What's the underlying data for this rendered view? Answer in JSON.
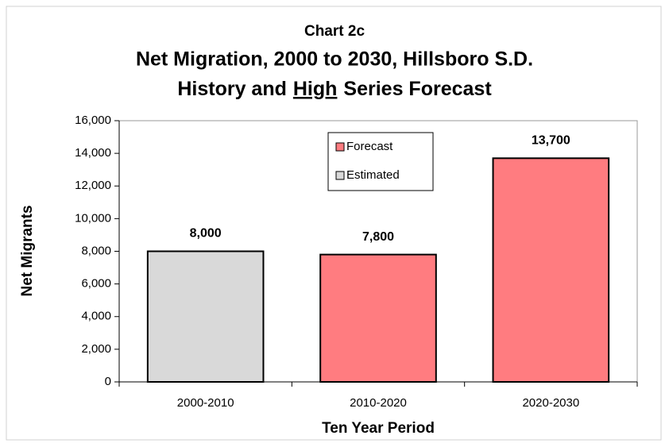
{
  "chart_data": {
    "type": "bar",
    "subtitle": "Chart 2c",
    "title": "Net Migration, 2000 to 2030, Hillsboro S.D.",
    "title_line2": [
      "History and",
      "High",
      "Series Forecast"
    ],
    "title_line2_underlined": [
      false,
      true,
      false
    ],
    "x_label": "Ten Year Period",
    "y_label": "Net Migrants",
    "categories": [
      "2000-2010",
      "2010-2020",
      "2020-2030"
    ],
    "series": [
      {
        "name": "Forecast",
        "color": "#ff7c80",
        "values": [
          null,
          7800,
          13700
        ],
        "value_labels": [
          null,
          "7,800",
          "13,700"
        ]
      },
      {
        "name": "Estimated",
        "color": "#d9d9d9",
        "values": [
          8000,
          null,
          null
        ],
        "value_labels": [
          "8,000",
          null,
          null
        ]
      }
    ],
    "ylim": [
      0,
      16000
    ],
    "yticks": [
      0,
      {
        "value": 2000,
        "label": "2,000"
      },
      {
        "value": 4000,
        "label": "4,000"
      },
      {
        "value": 6000,
        "label": "6,000"
      },
      {
        "value": 8000,
        "label": "8,000"
      },
      {
        "value": 10000,
        "label": "10,000"
      },
      {
        "value": 12000,
        "label": "12,000"
      },
      {
        "value": 14000,
        "label": "14,000"
      },
      {
        "value": 16000,
        "label": "16,000"
      }
    ],
    "grid": false,
    "legend": "top"
  }
}
